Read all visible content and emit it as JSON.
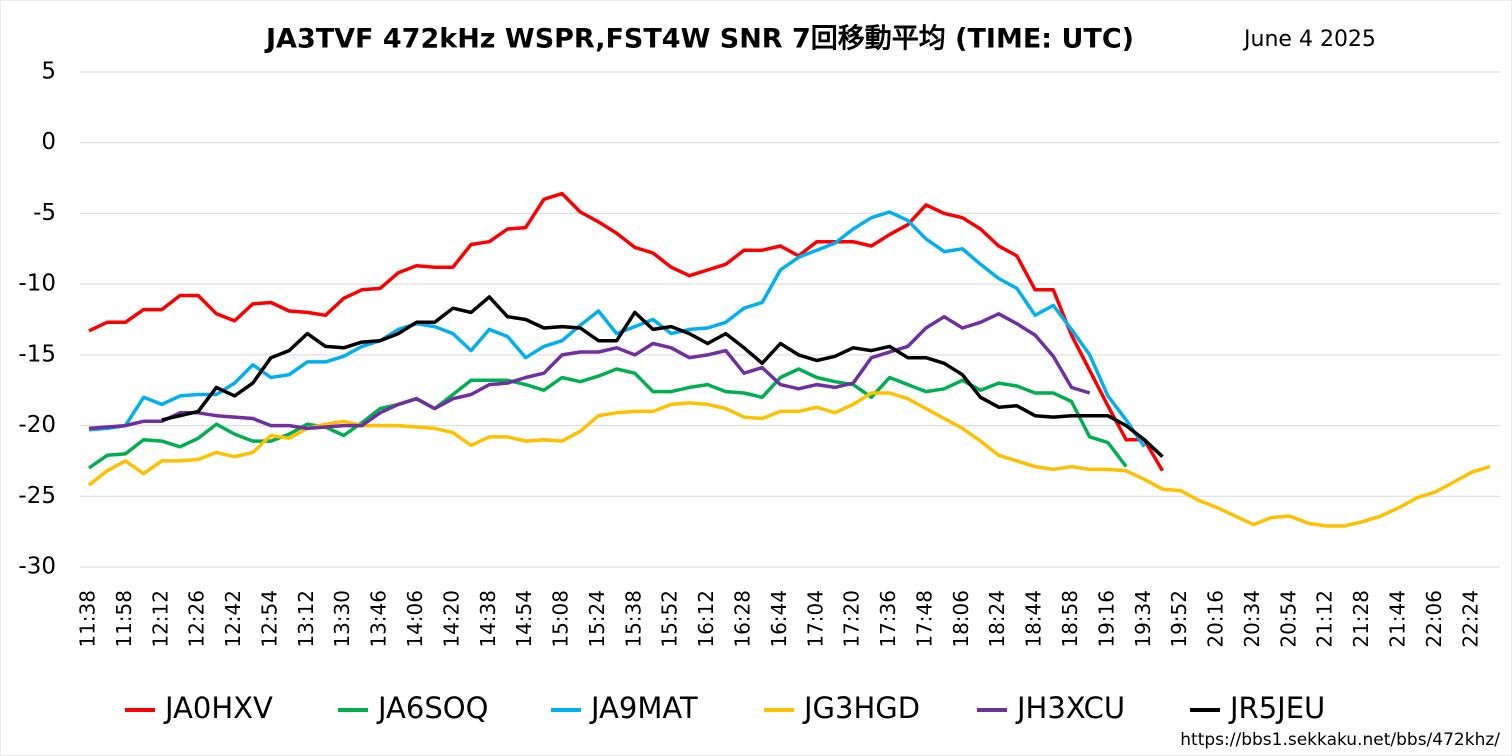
{
  "chart_data": {
    "type": "line",
    "title": "JA3TVF 472kHz WSPR,FST4W SNR 7回移動平均 (TIME: UTC)",
    "subtitle": "June 4 2025",
    "source": "https://bbs1.sekkaku.net/bbs/472khz/",
    "categories": [
      "11:38",
      null,
      "11:58",
      null,
      "12:12",
      null,
      "12:26",
      null,
      "12:42",
      null,
      "12:54",
      null,
      "13:12",
      null,
      "13:30",
      null,
      "13:46",
      null,
      "14:06",
      null,
      "14:20",
      null,
      "14:38",
      null,
      "14:54",
      null,
      "15:08",
      null,
      "15:24",
      null,
      "15:38",
      null,
      "15:52",
      null,
      "16:12",
      null,
      "16:28",
      null,
      "16:44",
      null,
      "17:04",
      null,
      "17:20",
      null,
      "17:36",
      null,
      "17:48",
      null,
      "18:06",
      null,
      "18:24",
      null,
      "18:44",
      null,
      "18:58",
      null,
      "19:16",
      null,
      "19:34",
      null,
      "19:52",
      null,
      "20:16",
      null,
      "20:34",
      null,
      "20:54",
      null,
      "21:12",
      null,
      "21:28",
      null,
      "21:44",
      null,
      "22:06",
      null,
      "22:24",
      null
    ],
    "ylim": [
      -30,
      5
    ],
    "yticks": [
      -30,
      -25,
      -20,
      -15,
      -10,
      -5,
      0,
      5
    ],
    "grid": true,
    "legend": "bottom",
    "series": [
      {
        "name": "JA0HXV",
        "color": "#ff0000",
        "values": [
          -13.3,
          -12.7,
          -12.7,
          -11.8,
          -11.8,
          -10.8,
          -10.8,
          -12.1,
          -12.6,
          -11.4,
          -11.3,
          -11.9,
          -12.0,
          -12.2,
          -11.0,
          -10.4,
          -10.3,
          -9.2,
          -8.7,
          -8.8,
          -8.8,
          -7.2,
          -7.0,
          -6.1,
          -6.0,
          -4.0,
          -3.6,
          -4.9,
          -5.6,
          -6.4,
          -7.4,
          -7.8,
          -8.8,
          -9.4,
          -9.0,
          -8.6,
          -7.6,
          -7.6,
          -7.3,
          -8.0,
          -7.0,
          -7.0,
          -7.0,
          -7.3,
          -6.5,
          -5.8,
          -4.4,
          -5.0,
          -5.3,
          -6.1,
          -7.3,
          -8.0,
          -10.4,
          -10.4,
          -13.6,
          -16.1,
          -18.6,
          -21.0,
          -21.0,
          -23.2,
          null,
          null,
          null,
          null,
          null,
          null,
          null,
          null,
          null,
          null,
          null,
          null,
          null,
          null,
          null,
          null,
          null,
          null
        ]
      },
      {
        "name": "JA6SOQ",
        "color": "#00b050",
        "values": [
          -23.0,
          -22.1,
          -22.0,
          -21.0,
          -21.1,
          -21.5,
          -20.9,
          -19.9,
          -20.6,
          -21.1,
          -21.1,
          -20.6,
          -19.9,
          -20.1,
          -20.7,
          -19.8,
          -18.8,
          -18.5,
          -18.1,
          -18.8,
          -17.8,
          -16.8,
          -16.8,
          -16.8,
          -17.1,
          -17.5,
          -16.6,
          -16.9,
          -16.5,
          -16.0,
          -16.3,
          -17.6,
          -17.6,
          -17.3,
          -17.1,
          -17.6,
          -17.7,
          -18.0,
          -16.6,
          -16.0,
          -16.6,
          -16.9,
          -17.1,
          -18.0,
          -16.6,
          -17.1,
          -17.6,
          -17.4,
          -16.8,
          -17.5,
          -17.0,
          -17.2,
          -17.7,
          -17.7,
          -18.3,
          -20.8,
          -21.2,
          -22.9,
          null,
          null,
          null,
          null,
          null,
          null,
          null,
          null,
          null,
          null,
          null,
          null,
          null,
          null,
          null,
          null,
          null,
          null,
          null,
          null
        ]
      },
      {
        "name": "JA9MAT",
        "color": "#00b0f0",
        "values": [
          -20.3,
          -20.2,
          -20.0,
          -18.0,
          -18.5,
          -17.9,
          -17.8,
          -17.8,
          -17.0,
          -15.7,
          -16.6,
          -16.4,
          -15.5,
          -15.5,
          -15.1,
          -14.4,
          -14.0,
          -13.2,
          -12.8,
          -13.0,
          -13.5,
          -14.7,
          -13.2,
          -13.7,
          -15.2,
          -14.4,
          -14.0,
          -12.9,
          -11.9,
          -13.5,
          -13.0,
          -12.5,
          -13.5,
          -13.2,
          -13.1,
          -12.7,
          -11.7,
          -11.3,
          -9.0,
          -8.1,
          -7.6,
          -7.1,
          -6.1,
          -5.3,
          -4.9,
          -5.5,
          -6.8,
          -7.7,
          -7.5,
          -8.6,
          -9.6,
          -10.3,
          -12.2,
          -11.5,
          -13.2,
          -15.0,
          -17.9,
          -19.6,
          -21.5,
          null,
          null,
          null,
          null,
          null,
          null,
          null,
          null,
          null,
          null,
          null,
          null,
          null,
          null,
          null,
          null,
          null,
          null,
          null
        ]
      },
      {
        "name": "JG3HGD",
        "color": "#ffc000",
        "values": [
          -24.2,
          -23.2,
          -22.5,
          -23.4,
          -22.5,
          -22.5,
          -22.4,
          -21.9,
          -22.2,
          -21.9,
          -20.7,
          -20.9,
          -20.2,
          -19.9,
          -19.7,
          -20.0,
          -20.0,
          -20.0,
          -20.1,
          -20.2,
          -20.5,
          -21.4,
          -20.8,
          -20.8,
          -21.1,
          -21.0,
          -21.1,
          -20.4,
          -19.3,
          -19.1,
          -19.0,
          -19.0,
          -18.5,
          -18.4,
          -18.5,
          -18.8,
          -19.4,
          -19.5,
          -19.0,
          -19.0,
          -18.7,
          -19.1,
          -18.5,
          -17.7,
          -17.7,
          -18.1,
          -18.8,
          -19.5,
          -20.2,
          -21.1,
          -22.1,
          -22.5,
          -22.9,
          -23.1,
          -22.9,
          -23.1,
          -23.1,
          -23.2,
          -23.8,
          -24.5,
          -24.6,
          -25.3,
          -25.8,
          -26.4,
          -27.0,
          -26.5,
          -26.4,
          -26.9,
          -27.1,
          -27.1,
          -26.8,
          -26.4,
          -25.8,
          -25.1,
          -24.7,
          -24.0,
          -23.3,
          -22.9
        ]
      },
      {
        "name": "JH3XCU",
        "color": "#7030a0",
        "values": [
          -20.2,
          -20.1,
          -20.0,
          -19.7,
          -19.7,
          -19.1,
          -19.1,
          -19.3,
          -19.4,
          -19.5,
          -20.0,
          -20.0,
          -20.2,
          -20.1,
          -20.0,
          -20.0,
          -19.1,
          -18.5,
          -18.1,
          -18.8,
          -18.1,
          -17.8,
          -17.1,
          -17.0,
          -16.6,
          -16.3,
          -15.0,
          -14.8,
          -14.8,
          -14.5,
          -15.0,
          -14.2,
          -14.5,
          -15.2,
          -15.0,
          -14.7,
          -16.3,
          -15.9,
          -17.1,
          -17.4,
          -17.1,
          -17.3,
          -17.0,
          -15.2,
          -14.8,
          -14.4,
          -13.1,
          -12.3,
          -13.1,
          -12.7,
          -12.1,
          -12.8,
          -13.6,
          -15.1,
          -17.3,
          -17.7,
          null,
          null,
          null,
          null,
          null,
          null,
          null,
          null,
          null,
          null,
          null,
          null,
          null,
          null,
          null,
          null,
          null,
          null,
          null,
          null,
          null,
          null
        ]
      },
      {
        "name": "JR5JEU",
        "color": "#000000",
        "values": [
          null,
          null,
          null,
          null,
          -19.6,
          -19.3,
          -19.0,
          -17.3,
          -17.9,
          -17.0,
          -15.2,
          -14.7,
          -13.5,
          -14.4,
          -14.5,
          -14.1,
          -14.0,
          -13.5,
          -12.7,
          -12.7,
          -11.7,
          -12.0,
          -10.9,
          -12.3,
          -12.5,
          -13.1,
          -13.0,
          -13.1,
          -14.0,
          -14.0,
          -12.0,
          -13.2,
          -13.0,
          -13.5,
          -14.2,
          -13.5,
          -14.5,
          -15.6,
          -14.2,
          -15.0,
          -15.4,
          -15.1,
          -14.5,
          -14.7,
          -14.4,
          -15.2,
          -15.2,
          -15.6,
          -16.4,
          -18.0,
          -18.7,
          -18.6,
          -19.3,
          -19.4,
          -19.3,
          -19.3,
          -19.3,
          -20.0,
          -21.0,
          -22.2,
          null,
          null,
          null,
          null,
          null,
          null,
          null,
          null,
          null,
          null,
          null,
          null,
          null,
          null,
          null,
          null,
          null,
          null
        ]
      }
    ]
  }
}
